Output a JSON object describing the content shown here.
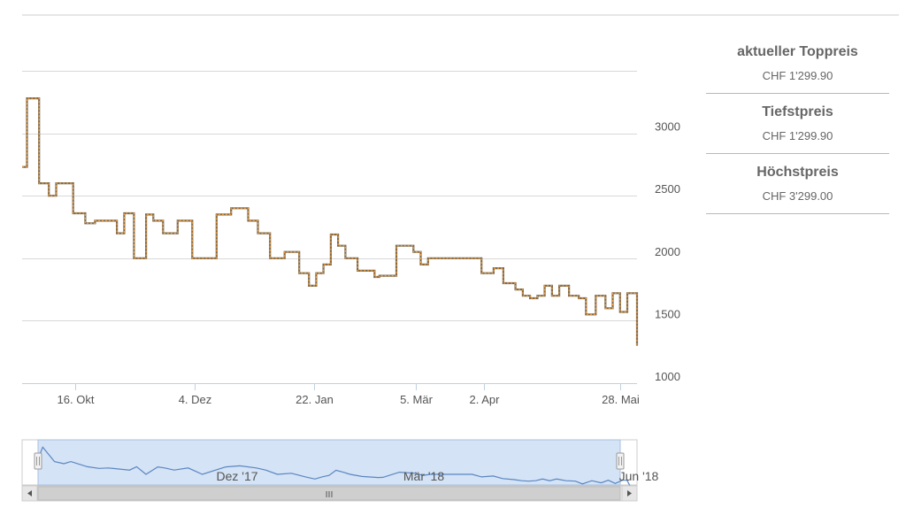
{
  "stats": [
    {
      "title": "aktueller Toppreis",
      "value": "CHF 1'299.90"
    },
    {
      "title": "Tiefstpreis",
      "value": "CHF 1'299.90"
    },
    {
      "title": "Höchstpreis",
      "value": "CHF 3'299.00"
    }
  ],
  "navigator": {
    "labels": [
      "Dez '17",
      "Mär '18",
      "Jun '18"
    ],
    "scrollbar_grip": "III"
  },
  "chart_data": {
    "type": "line",
    "step": true,
    "title": "",
    "xlabel": "",
    "ylabel": "",
    "ylim": [
      1000,
      3500
    ],
    "y_ticks": [
      1000,
      1500,
      2000,
      2500,
      3000
    ],
    "y_tick_labels": [
      "1000",
      "1500",
      "2000",
      "2500",
      "3000"
    ],
    "x_ticks": [
      "2017-10-16",
      "2017-12-04",
      "2018-01-22",
      "2018-03-05",
      "2018-04-02",
      "2018-05-28"
    ],
    "x_tick_labels": [
      "16. Okt",
      "4. Dez",
      "22. Jan",
      "5. Mär",
      "2. Apr",
      "28. Mai"
    ],
    "xlim": [
      "2017-09-24",
      "2018-06-04"
    ],
    "grid": true,
    "colors": {
      "line_main": "#7b6a4f",
      "line_dash": "#f39c3a",
      "grid": "#d8d8d8",
      "navigator_fill": "#d4e3f5",
      "navigator_line": "#5b86c2"
    },
    "series": [
      {
        "x": [
          "2017-09-24",
          "2017-09-26",
          "2017-10-01",
          "2017-10-05",
          "2017-10-08",
          "2017-10-15",
          "2017-10-20",
          "2017-10-24",
          "2017-11-02",
          "2017-11-05",
          "2017-11-09",
          "2017-11-14",
          "2017-11-17",
          "2017-11-21",
          "2017-11-27",
          "2017-12-03",
          "2017-12-13",
          "2017-12-19",
          "2017-12-26",
          "2017-12-30",
          "2018-01-04",
          "2018-01-10",
          "2018-01-16",
          "2018-01-20",
          "2018-01-23",
          "2018-01-26",
          "2018-01-29",
          "2018-02-01",
          "2018-02-04",
          "2018-02-09",
          "2018-02-16",
          "2018-02-18",
          "2018-02-25",
          "2018-03-04",
          "2018-03-07",
          "2018-03-10",
          "2018-03-20",
          "2018-03-28",
          "2018-04-01",
          "2018-04-06",
          "2018-04-10",
          "2018-04-15",
          "2018-04-18",
          "2018-04-21",
          "2018-04-24",
          "2018-04-27",
          "2018-04-30",
          "2018-05-03",
          "2018-05-07",
          "2018-05-11",
          "2018-05-14",
          "2018-05-18",
          "2018-05-22",
          "2018-05-25",
          "2018-05-28",
          "2018-05-31",
          "2018-06-02",
          "2018-06-04"
        ],
        "y": [
          2730,
          3280,
          2600,
          2500,
          2600,
          2360,
          2280,
          2300,
          2200,
          2360,
          2000,
          2350,
          2300,
          2200,
          2300,
          2000,
          2350,
          2400,
          2300,
          2200,
          2000,
          2050,
          1880,
          1780,
          1880,
          1950,
          2190,
          2100,
          2000,
          1900,
          1850,
          1860,
          2100,
          2050,
          1950,
          2000,
          2000,
          2000,
          1880,
          1920,
          1800,
          1750,
          1700,
          1680,
          1700,
          1780,
          1700,
          1780,
          1700,
          1680,
          1550,
          1700,
          1600,
          1720,
          1570,
          1720,
          1720,
          1300
        ]
      }
    ]
  }
}
